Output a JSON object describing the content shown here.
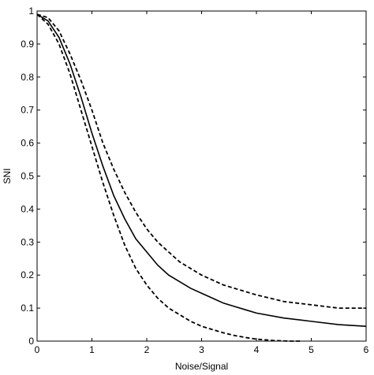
{
  "chart_data": {
    "type": "line",
    "title": "",
    "xlabel": "Noise/Signal",
    "ylabel": "SNI",
    "xlim": [
      0,
      6
    ],
    "ylim": [
      0,
      1
    ],
    "xticks": [
      0,
      1,
      2,
      3,
      4,
      5,
      6
    ],
    "xtick_labels": [
      "0",
      "1",
      "2",
      "3",
      "4",
      "5",
      "6"
    ],
    "yticks": [
      0,
      0.1,
      0.2,
      0.3,
      0.4,
      0.5,
      0.6,
      0.7,
      0.8,
      0.9,
      1
    ],
    "ytick_labels": [
      "0",
      "0.1",
      "0.2",
      "0.3",
      "0.4",
      "0.5",
      "0.6",
      "0.7",
      "0.8",
      "0.9",
      "1"
    ],
    "grid": false,
    "legend": "none",
    "series": [
      {
        "style": "solid",
        "color": "#000000",
        "x": [
          0,
          0.2,
          0.4,
          0.6,
          0.8,
          1.0,
          1.2,
          1.4,
          1.6,
          1.8,
          2.0,
          2.2,
          2.4,
          2.6,
          2.8,
          3.0,
          3.2,
          3.4,
          3.6,
          3.8,
          4.0,
          4.5,
          5.0,
          5.5,
          6.0
        ],
        "y": [
          0.99,
          0.97,
          0.92,
          0.84,
          0.74,
          0.63,
          0.53,
          0.44,
          0.37,
          0.31,
          0.27,
          0.23,
          0.2,
          0.18,
          0.16,
          0.145,
          0.13,
          0.115,
          0.105,
          0.095,
          0.085,
          0.07,
          0.06,
          0.05,
          0.045
        ]
      },
      {
        "style": "dashed",
        "color": "#000000",
        "x": [
          0,
          0.2,
          0.4,
          0.6,
          0.8,
          1.0,
          1.2,
          1.4,
          1.6,
          1.8,
          2.0,
          2.2,
          2.4,
          2.6,
          2.8,
          3.0,
          3.2,
          3.4,
          3.6,
          3.8,
          4.0,
          4.5,
          5.0,
          5.5,
          6.0
        ],
        "y": [
          0.99,
          0.98,
          0.94,
          0.87,
          0.79,
          0.7,
          0.6,
          0.52,
          0.45,
          0.39,
          0.34,
          0.3,
          0.27,
          0.24,
          0.22,
          0.2,
          0.185,
          0.17,
          0.16,
          0.15,
          0.14,
          0.12,
          0.11,
          0.1,
          0.1
        ]
      },
      {
        "style": "dashed",
        "color": "#000000",
        "x": [
          0,
          0.2,
          0.4,
          0.6,
          0.8,
          1.0,
          1.2,
          1.4,
          1.6,
          1.8,
          2.0,
          2.2,
          2.4,
          2.6,
          2.8,
          3.0,
          3.2,
          3.4,
          3.6,
          3.8,
          4.0,
          4.3,
          4.6,
          4.8
        ],
        "y": [
          0.99,
          0.96,
          0.9,
          0.81,
          0.7,
          0.59,
          0.48,
          0.38,
          0.29,
          0.22,
          0.17,
          0.13,
          0.1,
          0.08,
          0.06,
          0.045,
          0.035,
          0.025,
          0.017,
          0.011,
          0.006,
          0.002,
          0.0,
          0.0
        ]
      }
    ]
  }
}
